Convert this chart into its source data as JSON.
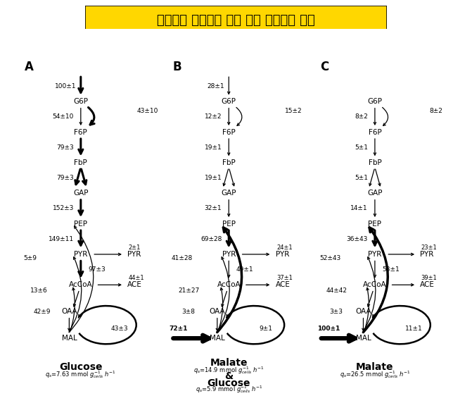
{
  "title": "공급되는 탄소원에 따른 대사 플럭스의 변화",
  "panels": [
    {
      "label": "A",
      "subtitle": "Glucose",
      "qs_full": "7.63 mmol $g_{cells}^{-1}$ $h^{-1}$",
      "has_top_input": true,
      "top_flux": "100±1",
      "top_bold": true,
      "g6p_f6p": "54±10",
      "g6p_f6p_bold": false,
      "f6p_fbp": "79±3",
      "f6p_fbp_bold": true,
      "fbp_gap": "79±3",
      "fbp_gap_bold": true,
      "gap_pep": "152±3",
      "gap_pep_bold": true,
      "pep_pyr": "149±11",
      "pep_pyr_bold": true,
      "pyr_accoa": "97±3",
      "pyr_accoa_bold": true,
      "pyr_pyro": "2±1",
      "accoa_ace": "44±1",
      "pentose": "43±10",
      "pentose_bold": true,
      "mal_pep": "5±9",
      "mal_pep_bold": false,
      "mal_pyr": "13±6",
      "mal_pyr_bold": false,
      "mal_accoa": "42±9",
      "mal_accoa_bold": false,
      "tca": "43±3",
      "has_mal_input": false,
      "mal_input": "",
      "mal_input_bold": false,
      "subtitle2": "",
      "qs2_full": ""
    },
    {
      "label": "B",
      "subtitle": "Malate",
      "qs_full": "14.9 mmol $g_{cells}^{-1}$ $h^{-1}$",
      "has_top_input": true,
      "top_flux": "28±1",
      "top_bold": false,
      "g6p_f6p": "12±2",
      "g6p_f6p_bold": false,
      "f6p_fbp": "19±1",
      "f6p_fbp_bold": false,
      "fbp_gap": "19±1",
      "fbp_gap_bold": false,
      "gap_pep": "32±1",
      "gap_pep_bold": false,
      "pep_pyr": "69±28",
      "pep_pyr_bold": true,
      "pyr_accoa": "49±1",
      "pyr_accoa_bold": false,
      "pyr_pyro": "24±1",
      "accoa_ace": "37±1",
      "pentose": "15±2",
      "pentose_bold": false,
      "mal_pep": "41±28",
      "mal_pep_bold": true,
      "mal_pyr": "21±27",
      "mal_pyr_bold": false,
      "mal_accoa": "3±8",
      "mal_accoa_bold": false,
      "tca": "9±1",
      "has_mal_input": true,
      "mal_input": "72±1",
      "mal_input_bold": true,
      "subtitle2": "& Glucose",
      "qs2_full": "5.9 mmol $g_{cells}^{-1}$ $h^{-1}$"
    },
    {
      "label": "C",
      "subtitle": "Malate",
      "qs_full": "26.5 mmol $g_{cells}^{-1}$ $h^{-1}$",
      "has_top_input": false,
      "top_flux": "",
      "top_bold": false,
      "g6p_f6p": "8±2",
      "g6p_f6p_bold": false,
      "f6p_fbp": "5±1",
      "f6p_fbp_bold": false,
      "fbp_gap": "5±1",
      "fbp_gap_bold": false,
      "gap_pep": "14±1",
      "gap_pep_bold": false,
      "pep_pyr": "36±43",
      "pep_pyr_bold": true,
      "pyr_accoa": "53±1",
      "pyr_accoa_bold": false,
      "pyr_pyro": "23±1",
      "accoa_ace": "39±1",
      "pentose": "8±2",
      "pentose_bold": false,
      "mal_pep": "52±43",
      "mal_pep_bold": true,
      "mal_pyr": "44±42",
      "mal_pyr_bold": false,
      "mal_accoa": "3±3",
      "mal_accoa_bold": false,
      "tca": "11±1",
      "has_mal_input": true,
      "mal_input": "100±1",
      "mal_input_bold": true,
      "subtitle2": "",
      "qs2_full": ""
    }
  ]
}
